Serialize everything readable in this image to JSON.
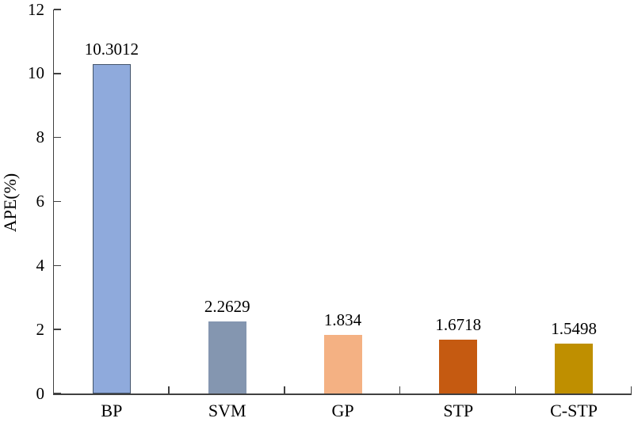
{
  "chart_data": {
    "type": "bar",
    "title": "",
    "categories": [
      "BP",
      "SVM",
      "GP",
      "STP",
      "C-STP"
    ],
    "values": [
      10.3012,
      2.2629,
      1.834,
      1.6718,
      1.5498
    ],
    "value_labels": [
      "10.3012",
      "2.2629",
      "1.834",
      "1.6718",
      "1.5498"
    ],
    "bar_colors": [
      "#8faadc",
      "#8496b0",
      "#f4b183",
      "#c55a11",
      "#bf8f00"
    ],
    "bar_border_colors": [
      "#44546a",
      null,
      null,
      null,
      null
    ],
    "xlabel": "",
    "ylabel": "APE(%)",
    "ylim": [
      0,
      12
    ],
    "yticks": [
      0,
      2,
      4,
      6,
      8,
      10,
      12
    ],
    "grid": false,
    "legend": "none",
    "axis_color": "#404040",
    "text_color": "#000000",
    "background": "#ffffff"
  }
}
